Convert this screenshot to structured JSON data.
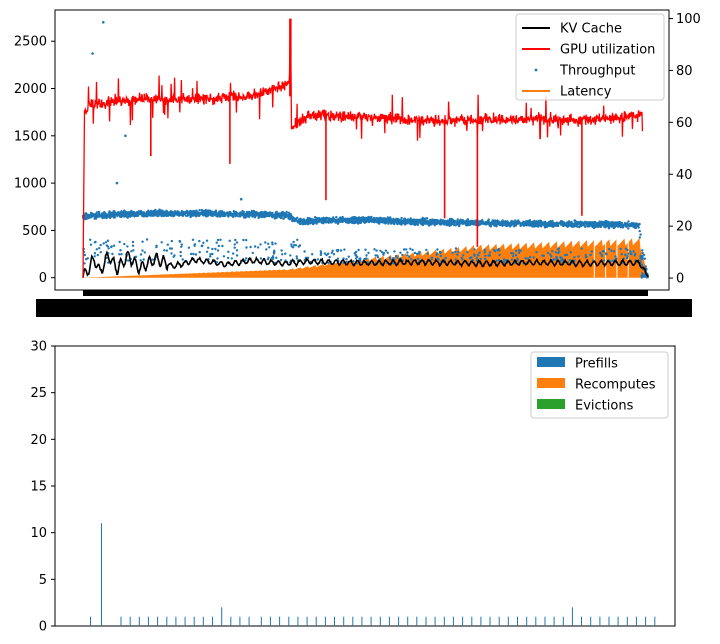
{
  "chart_data": [
    {
      "type": "line",
      "left_axis": {
        "ylim": [
          -130,
          2830
        ],
        "ticks": [
          0,
          500,
          1000,
          1500,
          2000,
          2500
        ]
      },
      "right_axis": {
        "ylim": [
          -4.6,
          103.3
        ],
        "ticks": [
          0,
          20,
          40,
          60,
          80,
          100
        ]
      },
      "x_range": [
        0,
        1
      ],
      "legend": {
        "position": "top-right",
        "entries": [
          {
            "label": "KV Cache",
            "color": "#000000",
            "kind": "line"
          },
          {
            "label": "GPU utilization",
            "color": "#ff0000",
            "kind": "line"
          },
          {
            "label": "Throughput",
            "color": "#1f77b4",
            "kind": "point"
          },
          {
            "label": "Latency",
            "color": "#ff7f0e",
            "kind": "line"
          }
        ]
      },
      "series": [
        {
          "name": "KV Cache",
          "axis": "left",
          "color": "#000000",
          "points": [
            [
              0.0,
              0
            ],
            [
              0.02,
              200
            ],
            [
              0.03,
              60
            ],
            [
              0.045,
              240
            ],
            [
              0.06,
              90
            ],
            [
              0.08,
              230
            ],
            [
              0.1,
              100
            ],
            [
              0.13,
              200
            ],
            [
              0.16,
              120
            ],
            [
              0.2,
              190
            ],
            [
              0.25,
              140
            ],
            [
              0.3,
              180
            ],
            [
              0.35,
              150
            ],
            [
              0.4,
              170
            ],
            [
              0.5,
              155
            ],
            [
              0.6,
              165
            ],
            [
              0.7,
              150
            ],
            [
              0.8,
              160
            ],
            [
              0.9,
              150
            ],
            [
              0.985,
              160
            ],
            [
              1.0,
              10
            ]
          ]
        },
        {
          "name": "GPU utilization",
          "axis": "right",
          "color": "#ff0000",
          "points": [
            [
              0.0,
              0
            ],
            [
              0.002,
              64
            ],
            [
              0.01,
              67
            ],
            [
              0.1,
              69
            ],
            [
              0.2,
              69
            ],
            [
              0.3,
              70
            ],
            [
              0.365,
              75
            ],
            [
              0.367,
              100
            ],
            [
              0.369,
              58
            ],
            [
              0.4,
              63
            ],
            [
              0.5,
              62
            ],
            [
              0.6,
              61
            ],
            [
              0.7,
              61
            ],
            [
              0.8,
              61
            ],
            [
              0.9,
              61
            ],
            [
              0.99,
              63
            ]
          ],
          "dips": [
            [
              0.12,
              47
            ],
            [
              0.26,
              44
            ],
            [
              0.43,
              30
            ],
            [
              0.64,
              23
            ],
            [
              0.698,
              12
            ],
            [
              0.883,
              24
            ]
          ]
        },
        {
          "name": "Throughput",
          "axis": "left",
          "color": "#1f77b4",
          "points": [
            [
              0.0,
              650
            ],
            [
              0.1,
              680
            ],
            [
              0.2,
              680
            ],
            [
              0.36,
              660
            ],
            [
              0.38,
              600
            ],
            [
              0.5,
              610
            ],
            [
              0.6,
              590
            ],
            [
              0.7,
              580
            ],
            [
              0.8,
              570
            ],
            [
              0.985,
              560
            ],
            [
              1.0,
              0
            ]
          ],
          "outliers": [
            [
              0.036,
              2700
            ],
            [
              0.017,
              2370
            ],
            [
              0.075,
              1500
            ],
            [
              0.06,
              1000
            ],
            [
              0.28,
              830
            ]
          ]
        },
        {
          "name": "Latency",
          "axis": "left",
          "color": "#ff7f0e",
          "points": [
            [
              0.0,
              0
            ],
            [
              0.36,
              90
            ],
            [
              0.5,
              210
            ],
            [
              0.7,
              350
            ],
            [
              0.985,
              420
            ],
            [
              1.0,
              0
            ]
          ]
        }
      ]
    },
    {
      "type": "bar",
      "ylim": [
        0,
        30
      ],
      "ticks": [
        0,
        5,
        10,
        15,
        20,
        25,
        30
      ],
      "legend": {
        "position": "top-right",
        "entries": [
          {
            "label": "Prefills",
            "color": "#1f77b4"
          },
          {
            "label": "Recomputes",
            "color": "#ff7f0e"
          },
          {
            "label": "Evictions",
            "color": "#2ca02c"
          }
        ]
      },
      "series": [
        {
          "name": "Prefills",
          "color": "#1f77b4",
          "bars": [
            [
              0.05,
              1
            ],
            [
              0.068,
              11
            ],
            [
              0.1,
              1
            ],
            [
              0.115,
              1
            ],
            [
              0.13,
              1
            ],
            [
              0.145,
              1
            ],
            [
              0.16,
              1
            ],
            [
              0.175,
              1
            ],
            [
              0.19,
              1
            ],
            [
              0.205,
              1
            ],
            [
              0.22,
              1
            ],
            [
              0.235,
              1
            ],
            [
              0.25,
              1
            ],
            [
              0.265,
              2
            ],
            [
              0.28,
              1
            ],
            [
              0.295,
              1
            ],
            [
              0.31,
              1
            ],
            [
              0.33,
              1
            ],
            [
              0.345,
              1
            ],
            [
              0.36,
              1
            ],
            [
              0.375,
              1
            ],
            [
              0.39,
              1
            ],
            [
              0.405,
              1
            ],
            [
              0.42,
              1
            ],
            [
              0.435,
              1
            ],
            [
              0.45,
              1
            ],
            [
              0.465,
              1
            ],
            [
              0.48,
              1
            ],
            [
              0.495,
              1
            ],
            [
              0.51,
              1
            ],
            [
              0.525,
              1
            ],
            [
              0.54,
              1
            ],
            [
              0.555,
              1
            ],
            [
              0.57,
              1
            ],
            [
              0.585,
              1
            ],
            [
              0.6,
              1
            ],
            [
              0.615,
              1
            ],
            [
              0.63,
              1
            ],
            [
              0.645,
              1
            ],
            [
              0.66,
              1
            ],
            [
              0.675,
              1
            ],
            [
              0.69,
              1
            ],
            [
              0.705,
              1
            ],
            [
              0.72,
              1
            ],
            [
              0.735,
              1
            ],
            [
              0.75,
              1
            ],
            [
              0.765,
              1
            ],
            [
              0.78,
              1
            ],
            [
              0.795,
              1
            ],
            [
              0.81,
              1
            ],
            [
              0.825,
              1
            ],
            [
              0.84,
              2
            ],
            [
              0.855,
              1
            ],
            [
              0.87,
              1
            ],
            [
              0.885,
              1
            ],
            [
              0.9,
              1
            ],
            [
              0.915,
              1
            ],
            [
              0.93,
              1
            ],
            [
              0.945,
              1
            ],
            [
              0.96,
              1
            ],
            [
              0.975,
              1
            ]
          ]
        }
      ]
    }
  ]
}
